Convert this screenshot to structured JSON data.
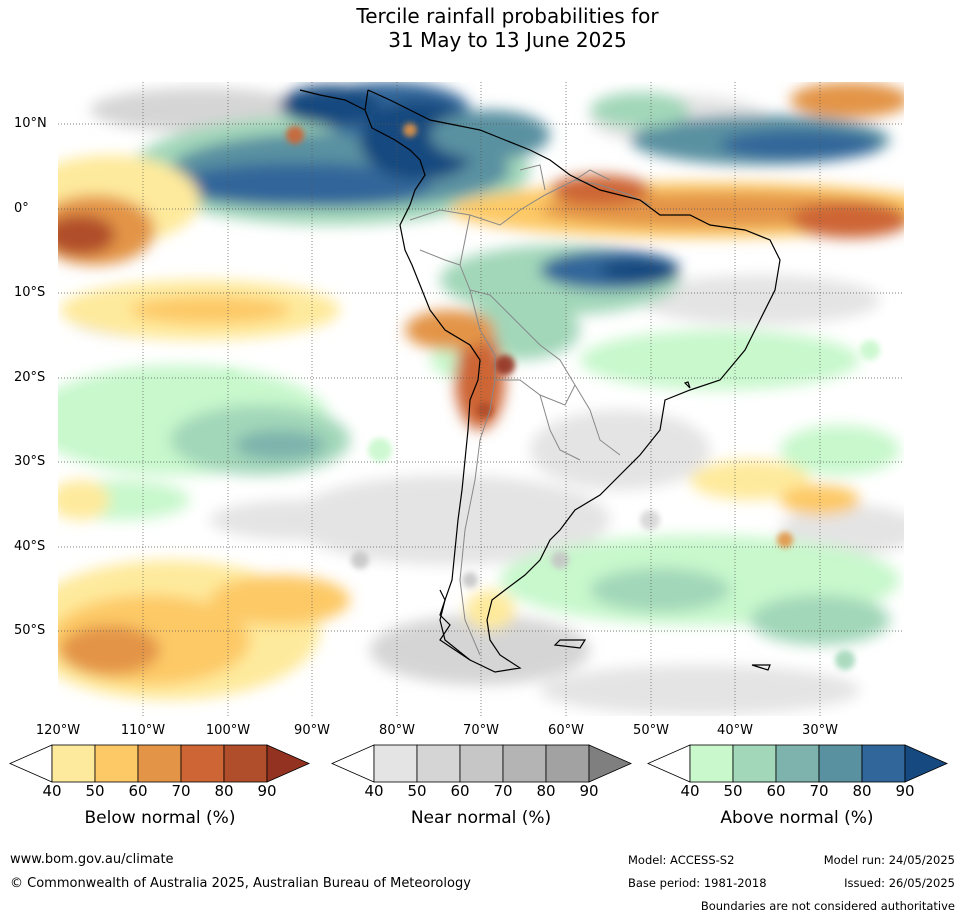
{
  "title": {
    "line1": "Tercile rainfall probabilities for",
    "line2": "31 May to 13 June 2025"
  },
  "map": {
    "region": "South America and surrounding oceans",
    "lat_labels": [
      "10°N",
      "0°",
      "10°S",
      "20°S",
      "30°S",
      "40°S",
      "50°S"
    ],
    "lon_labels": [
      "120°W",
      "110°W",
      "100°W",
      "90°W",
      "80°W",
      "70°W",
      "60°W",
      "50°W",
      "40°W",
      "30°W"
    ],
    "gridlines": true
  },
  "colorbars": [
    {
      "title": "Below normal (%)",
      "ticks": [
        "40",
        "50",
        "60",
        "70",
        "80",
        "90"
      ],
      "colors": [
        "#ffffff",
        "#feea9c",
        "#fdc966",
        "#e39447",
        "#cd6534",
        "#b04e2b",
        "#943222"
      ]
    },
    {
      "title": "Near normal (%)",
      "ticks": [
        "40",
        "50",
        "60",
        "70",
        "80",
        "90"
      ],
      "colors": [
        "#ffffff",
        "#e4e4e4",
        "#d5d5d5",
        "#c6c6c6",
        "#b4b4b4",
        "#a2a2a2",
        "#7f7f7f"
      ]
    },
    {
      "title": "Above normal (%)",
      "ticks": [
        "40",
        "50",
        "60",
        "70",
        "80",
        "90"
      ],
      "colors": [
        "#ffffff",
        "#c8f8cc",
        "#a2d7b9",
        "#7db3ac",
        "#5a91a1",
        "#30669a",
        "#16497f"
      ]
    }
  ],
  "footer": {
    "website": "www.bom.gov.au/climate",
    "copyright": "© Commonwealth of Australia 2025, Australian Bureau of Meteorology",
    "model": "Model: ACCESS-S2",
    "model_run": "Model run: 24/05/2025",
    "base_period": "Base period: 1981-2018",
    "issued": "Issued: 26/05/2025",
    "disclaimer": "Boundaries are not considered authoritative"
  }
}
